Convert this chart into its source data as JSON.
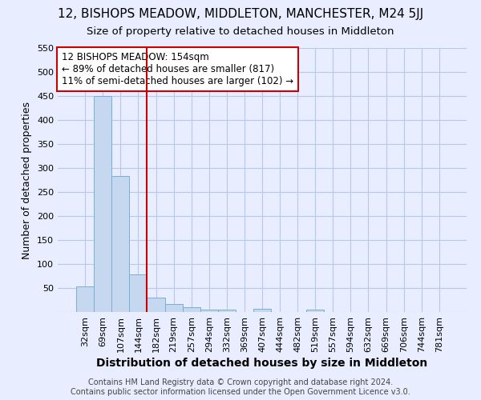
{
  "title": "12, BISHOPS MEADOW, MIDDLETON, MANCHESTER, M24 5JJ",
  "subtitle": "Size of property relative to detached houses in Middleton",
  "xlabel": "Distribution of detached houses by size in Middleton",
  "ylabel": "Number of detached properties",
  "categories": [
    "32sqm",
    "69sqm",
    "107sqm",
    "144sqm",
    "182sqm",
    "219sqm",
    "257sqm",
    "294sqm",
    "332sqm",
    "369sqm",
    "407sqm",
    "444sqm",
    "482sqm",
    "519sqm",
    "557sqm",
    "594sqm",
    "632sqm",
    "669sqm",
    "706sqm",
    "744sqm",
    "781sqm"
  ],
  "values": [
    53,
    450,
    283,
    78,
    30,
    17,
    10,
    5,
    5,
    0,
    6,
    0,
    0,
    5,
    0,
    0,
    0,
    0,
    0,
    0,
    0
  ],
  "bar_color": "#c5d8f0",
  "bar_edgecolor": "#7aaed6",
  "vline_x": 3.5,
  "vline_color": "#cc0000",
  "annotation_text": "12 BISHOPS MEADOW: 154sqm\n← 89% of detached houses are smaller (817)\n11% of semi-detached houses are larger (102) →",
  "annotation_box_facecolor": "#ffffff",
  "annotation_box_edgecolor": "#cc0000",
  "footer_line1": "Contains HM Land Registry data © Crown copyright and database right 2024.",
  "footer_line2": "Contains public sector information licensed under the Open Government Licence v3.0.",
  "background_color": "#e8eeff",
  "grid_color": "#b8c8e8",
  "ylim": [
    0,
    550
  ],
  "yticks": [
    0,
    50,
    100,
    150,
    200,
    250,
    300,
    350,
    400,
    450,
    500,
    550
  ],
  "title_fontsize": 11,
  "subtitle_fontsize": 9.5,
  "xlabel_fontsize": 10,
  "ylabel_fontsize": 9,
  "tick_fontsize": 8,
  "annot_fontsize": 8.5,
  "footer_fontsize": 7
}
